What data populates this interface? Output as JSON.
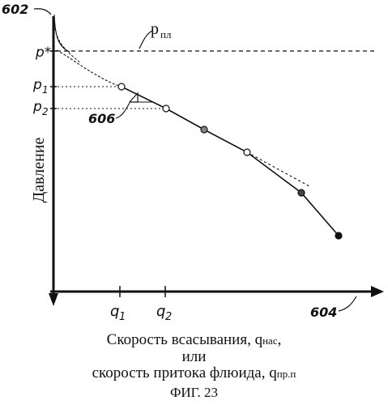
{
  "diagram": {
    "y_axis_title": "Давление",
    "x_axis_title_line1": "Скорость всасывания, q",
    "x_axis_title_line1_sub": "нас",
    "x_axis_title_line1_suffix": ",",
    "x_axis_title_line2": "или",
    "x_axis_title_line3": "скорость притока флюида, q",
    "x_axis_title_line3_sub": "пр.п",
    "figure_caption": "ФИГ. 23",
    "y_ticks": {
      "p_star": "p*",
      "p1": "p",
      "p1_sub": "1",
      "p2": "p",
      "p2_sub": "2"
    },
    "x_ticks": {
      "q1": "q",
      "q1_sub": "1",
      "q2": "q",
      "q2_sub": "2"
    },
    "reservoir_pressure_label": "p",
    "reservoir_pressure_sub": "пл",
    "reference_numerals": {
      "y_axis": "602",
      "x_axis": "604",
      "tangent_triangle": "606"
    },
    "colors": {
      "ink": "#111111",
      "background": "#ffffff",
      "open_marker_fill": "#ffffff",
      "hatched_marker_fill": "#888888",
      "solid_marker_fill": "#111111"
    }
  }
}
